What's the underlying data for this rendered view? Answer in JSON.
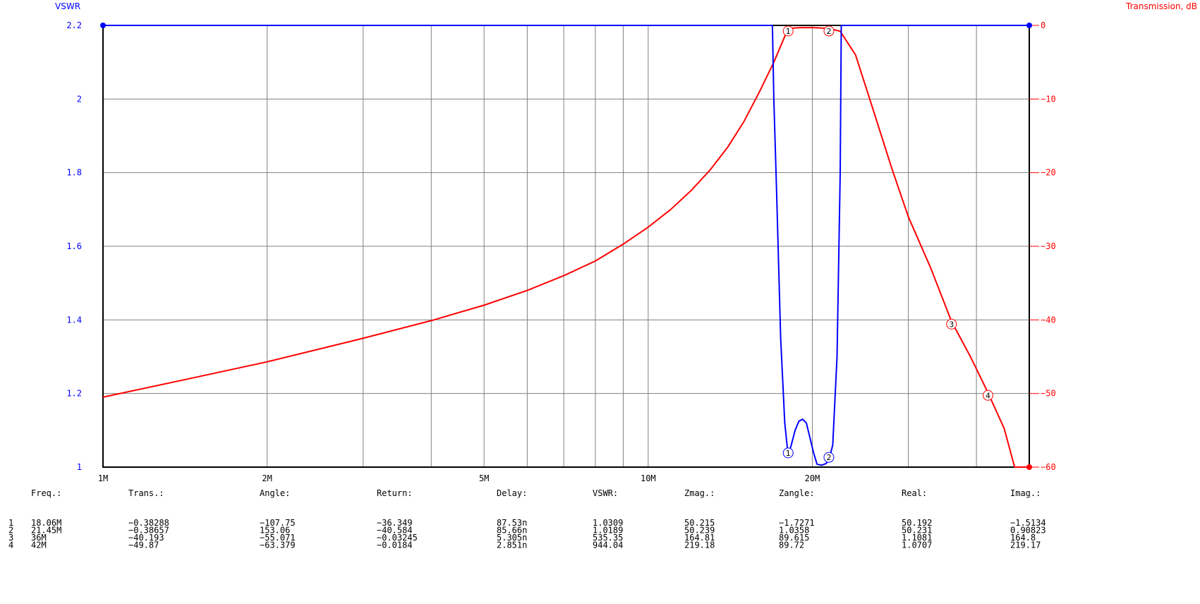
{
  "colors": {
    "vswr": "#0000ff",
    "transmission": "#ff0000",
    "grid": "#808080",
    "axis": "#000000"
  },
  "chart_data": {
    "type": "line",
    "x_scale": "log",
    "xlim": [
      1,
      50
    ],
    "grid": true,
    "left_axis": {
      "label": "VSWR",
      "ylim": [
        1,
        2.2
      ],
      "ticks": [
        "1",
        "1.2",
        "1.4",
        "1.6",
        "1.8",
        "2",
        "2.2"
      ]
    },
    "right_axis": {
      "label": "Transmission, dB",
      "ylim": [
        -60,
        0
      ],
      "ticks": [
        "-60",
        "-50",
        "-40",
        "-30",
        "-20",
        "-10",
        "0"
      ]
    },
    "x_tick_labels": [
      {
        "label": "1M",
        "value": 1
      },
      {
        "label": "2M",
        "value": 2
      },
      {
        "label": "5M",
        "value": 5
      },
      {
        "label": "10M",
        "value": 10
      },
      {
        "label": "20M",
        "value": 20
      }
    ],
    "x_gridlines": [
      2,
      3,
      4,
      5,
      6,
      7,
      8,
      9,
      10,
      20,
      30,
      40
    ],
    "series": [
      {
        "axis": "right",
        "color": "#ff0000",
        "x": [
          1,
          1.5,
          2,
          3,
          4,
          5,
          6,
          7,
          8,
          9,
          10,
          11,
          12,
          13,
          14,
          15,
          16,
          17,
          18.06,
          19,
          20,
          21.45,
          22.5,
          24,
          26,
          28,
          30,
          33,
          36,
          39,
          42,
          45,
          47,
          50
        ],
        "y": [
          -50.5,
          -47.7,
          -45.7,
          -42.5,
          -40.1,
          -38.0,
          -36.0,
          -34.0,
          -32.0,
          -29.7,
          -27.4,
          -25.0,
          -22.4,
          -19.6,
          -16.5,
          -13.0,
          -9.0,
          -5.0,
          -0.4,
          -0.3,
          -0.3,
          -0.4,
          -0.8,
          -4.0,
          -12.0,
          -19.5,
          -26.0,
          -33.0,
          -40.2,
          -45.0,
          -49.9,
          -54.8,
          -60.0,
          -60.0
        ]
      },
      {
        "axis": "left",
        "color": "#0000ff",
        "x": [
          1,
          16.9,
          17.0,
          17.2,
          17.5,
          17.8,
          18.06,
          18.3,
          18.6,
          18.9,
          19.2,
          19.5,
          19.8,
          20.1,
          20.4,
          20.8,
          21.2,
          21.45,
          21.8,
          22.2,
          22.5,
          22.6,
          50
        ],
        "y": [
          2.2,
          2.2,
          2.0,
          1.75,
          1.35,
          1.12,
          1.031,
          1.06,
          1.1,
          1.125,
          1.13,
          1.12,
          1.08,
          1.04,
          1.008,
          1.005,
          1.01,
          1.019,
          1.06,
          1.3,
          1.8,
          2.2,
          2.2
        ]
      }
    ],
    "markers": [
      {
        "id": "1",
        "x": 18.06,
        "trans_db": -0.38288,
        "vswr": 1.0309
      },
      {
        "id": "2",
        "x": 21.45,
        "trans_db": -0.38657,
        "vswr": 1.0189
      },
      {
        "id": "3",
        "x": 36,
        "trans_db": -40.193
      },
      {
        "id": "4",
        "x": 42,
        "trans_db": -49.87
      }
    ]
  },
  "table": {
    "headers": [
      "Freq.:",
      "Trans.:",
      "Angle:",
      "Return:",
      "Delay:",
      "VSWR:",
      "Zmag.:",
      "Zangle:",
      "Real:",
      "Imag.:"
    ],
    "rows": [
      {
        "index": "1",
        "cells": [
          "18.06M",
          "−0.38288",
          "−107.75",
          "−36.349",
          "87.53n",
          "1.0309",
          "50.215",
          "−1.7271",
          "50.192",
          "−1.5134"
        ]
      },
      {
        "index": "2",
        "cells": [
          "21.45M",
          "−0.38657",
          "153.06",
          "−40.584",
          "85.66n",
          "1.0189",
          "50.239",
          "1.0358",
          "50.231",
          "0.90823"
        ]
      },
      {
        "index": "3",
        "cells": [
          "36M",
          "−40.193",
          "−55.071",
          "−0.03245",
          "5.305n",
          "535.35",
          "164.81",
          "89.615",
          "1.1081",
          "164.8"
        ]
      },
      {
        "index": "4",
        "cells": [
          "42M",
          "−49.87",
          "−63.379",
          "−0.0184",
          "2.851n",
          "944.04",
          "219.18",
          "89.72",
          "1.0707",
          "219.17"
        ]
      }
    ]
  }
}
